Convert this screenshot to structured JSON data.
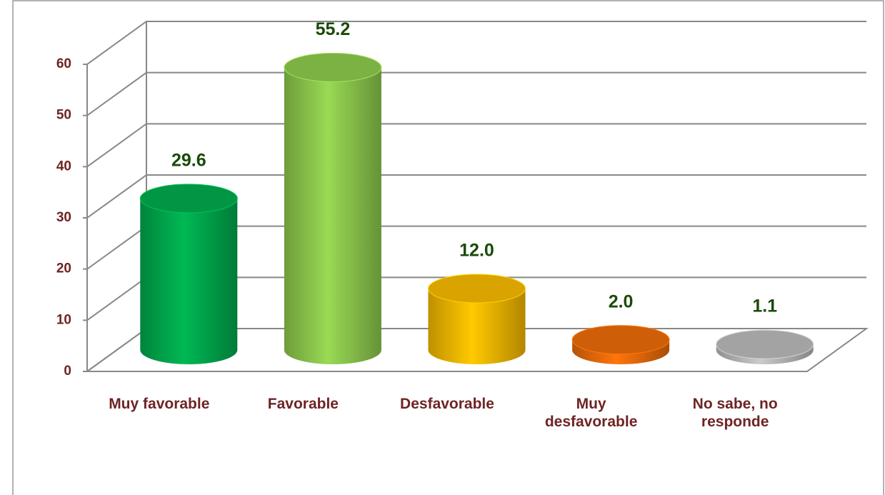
{
  "chart_data": {
    "type": "bar3d",
    "categories": [
      "Muy favorable",
      "Favorable",
      "Desfavorable",
      "Muy desfavorable",
      "No sabe, no responde"
    ],
    "values": [
      29.6,
      55.2,
      12.0,
      2.0,
      1.1
    ],
    "value_labels": [
      "29.6",
      "55.2",
      "12.0",
      "2.0",
      "1.1"
    ],
    "colors": [
      "#00b050",
      "#92d050",
      "#ffc000",
      "#f36f0a",
      "#c0c0c0"
    ],
    "ylim": [
      0,
      60
    ],
    "yticks": [
      0,
      10,
      20,
      30,
      40,
      50,
      60
    ],
    "grid": true
  }
}
